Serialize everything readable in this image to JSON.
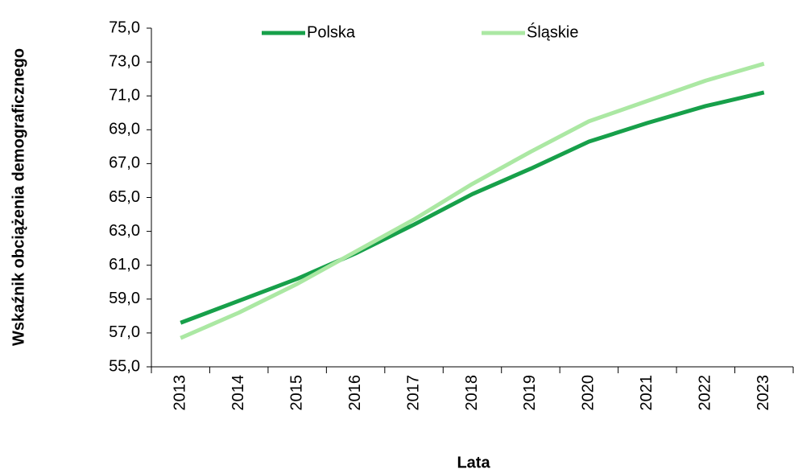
{
  "chart_data": {
    "type": "line",
    "y_label": "Wskaźnik obciążenia demograficznego",
    "x_label": "Lata",
    "categories": [
      "2013",
      "2014",
      "2015",
      "2016",
      "2017",
      "2018",
      "2019",
      "2020",
      "2021",
      "2022",
      "2023"
    ],
    "series": [
      {
        "name": "Polska",
        "color": "#17a04a",
        "values": [
          57.6,
          58.9,
          60.2,
          61.7,
          63.4,
          65.2,
          66.7,
          68.3,
          69.4,
          70.4,
          71.2
        ]
      },
      {
        "name": "Śląskie",
        "color": "#abe8a3",
        "values": [
          56.7,
          58.2,
          59.9,
          61.8,
          63.7,
          65.8,
          67.7,
          69.5,
          70.7,
          71.9,
          72.9
        ]
      }
    ],
    "ylim": [
      55,
      75
    ],
    "yticks": [
      {
        "value": 55,
        "label": "55,0"
      },
      {
        "value": 57,
        "label": "57,0"
      },
      {
        "value": 59,
        "label": "59,0"
      },
      {
        "value": 61,
        "label": "61,0"
      },
      {
        "value": 63,
        "label": "63,0"
      },
      {
        "value": 65,
        "label": "65,0"
      },
      {
        "value": 67,
        "label": "67,0"
      },
      {
        "value": 69,
        "label": "69,0"
      },
      {
        "value": 71,
        "label": "71,0"
      },
      {
        "value": 73,
        "label": "73,0"
      },
      {
        "value": 75,
        "label": "75,0"
      }
    ],
    "grid": false,
    "legend": "top"
  }
}
